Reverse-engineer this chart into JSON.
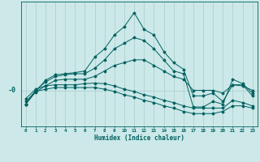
{
  "x": [
    0,
    1,
    2,
    3,
    4,
    5,
    6,
    7,
    8,
    9,
    10,
    11,
    12,
    13,
    14,
    15,
    16,
    17,
    18,
    19,
    20,
    21,
    22,
    23
  ],
  "line1": [
    -2.5,
    -0.2,
    1.8,
    2.8,
    3.0,
    3.2,
    3.5,
    6.0,
    7.5,
    10.0,
    11.5,
    14.0,
    11.0,
    10.0,
    7.0,
    5.0,
    3.8,
    -1.0,
    -1.0,
    -0.5,
    -2.0,
    1.0,
    1.0,
    -1.0
  ],
  "line2": [
    -2.5,
    0.0,
    1.5,
    2.5,
    2.8,
    3.0,
    3.0,
    4.0,
    5.5,
    7.5,
    8.5,
    9.5,
    9.0,
    7.5,
    5.5,
    3.5,
    3.0,
    -3.0,
    -3.0,
    -2.0,
    -2.5,
    2.0,
    1.2,
    -0.5
  ],
  "line3": [
    -2.5,
    -0.3,
    0.8,
    1.8,
    2.0,
    2.0,
    2.0,
    2.5,
    3.5,
    4.5,
    5.0,
    5.5,
    5.5,
    4.5,
    3.5,
    2.5,
    2.0,
    0.0,
    0.0,
    0.0,
    -0.5,
    1.0,
    0.8,
    0.0
  ],
  "line4": [
    -1.5,
    0.2,
    0.8,
    1.0,
    1.0,
    1.0,
    1.2,
    1.3,
    1.2,
    0.8,
    0.2,
    -0.2,
    -0.8,
    -1.2,
    -1.8,
    -2.2,
    -2.8,
    -3.2,
    -3.2,
    -3.2,
    -3.2,
    -1.8,
    -2.2,
    -2.8
  ],
  "line5": [
    -2.0,
    -0.2,
    0.2,
    0.5,
    0.5,
    0.5,
    0.5,
    0.5,
    0.2,
    -0.2,
    -0.8,
    -1.2,
    -1.8,
    -2.2,
    -2.8,
    -3.2,
    -3.8,
    -4.2,
    -4.2,
    -4.2,
    -3.8,
    -2.8,
    -2.8,
    -3.2
  ],
  "bg_color": "#cce8e8",
  "line_color": "#006060",
  "grid_color": "#aacece",
  "ylabel_text": "-0",
  "xlabel_text": "Humidex (Indice chaleur)",
  "ylim": [
    -6.5,
    16
  ],
  "xlim_min": -0.5,
  "xlim_max": 23.5
}
